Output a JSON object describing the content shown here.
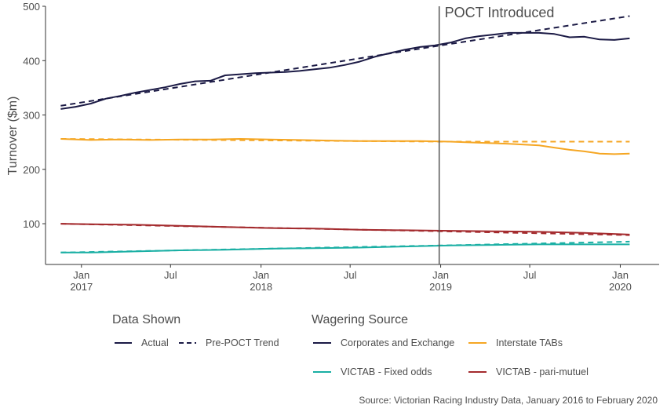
{
  "chart_data": {
    "type": "line",
    "ylabel": "Turnover ($m)",
    "xlabel": "",
    "ylim": [
      25,
      500
    ],
    "yticks": [
      100,
      200,
      300,
      400,
      500
    ],
    "xlim": [
      "2016-10-20",
      "2020-03-20"
    ],
    "xticks": [
      {
        "date": "2017-01-01",
        "label": [
          "Jan",
          "2017"
        ]
      },
      {
        "date": "2017-07-01",
        "label": [
          "Jul",
          ""
        ]
      },
      {
        "date": "2018-01-01",
        "label": [
          "Jan",
          "2018"
        ]
      },
      {
        "date": "2018-07-01",
        "label": [
          "Jul",
          ""
        ]
      },
      {
        "date": "2019-01-01",
        "label": [
          "Jan",
          "2019"
        ]
      },
      {
        "date": "2019-07-01",
        "label": [
          "Jul",
          ""
        ]
      },
      {
        "date": "2020-01-01",
        "label": [
          "Jan",
          "2020"
        ]
      }
    ],
    "grid": false,
    "annotation": {
      "date": "2018-12-29",
      "text": "POCT Introduced"
    },
    "series": [
      {
        "name": "Corporates and Exchange",
        "style": "Actual",
        "color": "#1b1a45",
        "points": [
          [
            "2016-11-20",
            311
          ],
          [
            "2016-12-20",
            315
          ],
          [
            "2017-01-20",
            321
          ],
          [
            "2017-02-20",
            330
          ],
          [
            "2017-03-20",
            335
          ],
          [
            "2017-04-20",
            341
          ],
          [
            "2017-05-20",
            346
          ],
          [
            "2017-06-20",
            351
          ],
          [
            "2017-07-20",
            357
          ],
          [
            "2017-08-20",
            362
          ],
          [
            "2017-09-20",
            363
          ],
          [
            "2017-10-20",
            373
          ],
          [
            "2017-11-20",
            375
          ],
          [
            "2017-12-20",
            377
          ],
          [
            "2018-01-20",
            378
          ],
          [
            "2018-02-20",
            379
          ],
          [
            "2018-03-20",
            381
          ],
          [
            "2018-04-20",
            384
          ],
          [
            "2018-05-20",
            387
          ],
          [
            "2018-06-20",
            392
          ],
          [
            "2018-07-20",
            398
          ],
          [
            "2018-08-20",
            407
          ],
          [
            "2018-09-20",
            414
          ],
          [
            "2018-10-20",
            420
          ],
          [
            "2018-11-20",
            425
          ],
          [
            "2018-12-20",
            428
          ],
          [
            "2019-01-20",
            433
          ],
          [
            "2019-02-20",
            441
          ],
          [
            "2019-03-20",
            445
          ],
          [
            "2019-04-20",
            448
          ],
          [
            "2019-05-20",
            451
          ],
          [
            "2019-06-20",
            451
          ],
          [
            "2019-07-20",
            451
          ],
          [
            "2019-08-20",
            449
          ],
          [
            "2019-09-20",
            443
          ],
          [
            "2019-10-20",
            444
          ],
          [
            "2019-11-20",
            439
          ],
          [
            "2019-12-20",
            438
          ],
          [
            "2020-01-20",
            441
          ]
        ]
      },
      {
        "name": "Corporates and Exchange",
        "style": "Pre-POCT Trend",
        "color": "#1b1a45",
        "points": [
          [
            "2016-11-20",
            317
          ],
          [
            "2019-01-01",
            428
          ],
          [
            "2020-01-20",
            482
          ]
        ]
      },
      {
        "name": "Interstate TABs",
        "style": "Actual",
        "color": "#f5a623",
        "points": [
          [
            "2016-11-20",
            256
          ],
          [
            "2017-01-20",
            254
          ],
          [
            "2017-03-20",
            255
          ],
          [
            "2017-05-20",
            254
          ],
          [
            "2017-07-20",
            255
          ],
          [
            "2017-09-20",
            255
          ],
          [
            "2017-11-20",
            256
          ],
          [
            "2018-01-20",
            255
          ],
          [
            "2018-03-20",
            254
          ],
          [
            "2018-05-20",
            253
          ],
          [
            "2018-07-20",
            252
          ],
          [
            "2018-09-20",
            252
          ],
          [
            "2018-11-20",
            252
          ],
          [
            "2019-01-20",
            251
          ],
          [
            "2019-03-20",
            249
          ],
          [
            "2019-05-20",
            247
          ],
          [
            "2019-07-20",
            244
          ],
          [
            "2019-08-20",
            240
          ],
          [
            "2019-09-20",
            236
          ],
          [
            "2019-10-20",
            233
          ],
          [
            "2019-11-20",
            229
          ],
          [
            "2019-12-20",
            228
          ],
          [
            "2020-01-20",
            229
          ]
        ]
      },
      {
        "name": "Interstate TABs",
        "style": "Pre-POCT Trend",
        "color": "#f5a623",
        "points": [
          [
            "2016-11-20",
            256
          ],
          [
            "2019-01-01",
            251
          ],
          [
            "2020-01-20",
            251
          ]
        ]
      },
      {
        "name": "VICTAB - Fixed odds",
        "style": "Actual",
        "color": "#1aafa4",
        "points": [
          [
            "2016-11-20",
            47
          ],
          [
            "2017-01-20",
            47
          ],
          [
            "2017-04-20",
            49
          ],
          [
            "2017-07-20",
            51
          ],
          [
            "2017-10-20",
            52
          ],
          [
            "2018-01-20",
            54
          ],
          [
            "2018-04-20",
            55
          ],
          [
            "2018-07-20",
            56
          ],
          [
            "2018-10-20",
            58
          ],
          [
            "2019-01-20",
            60
          ],
          [
            "2019-04-20",
            61
          ],
          [
            "2019-07-20",
            62
          ],
          [
            "2019-10-20",
            62
          ],
          [
            "2020-01-20",
            62
          ]
        ]
      },
      {
        "name": "VICTAB - Fixed odds",
        "style": "Pre-POCT Trend",
        "color": "#1aafa4",
        "points": [
          [
            "2016-11-20",
            47
          ],
          [
            "2019-01-01",
            60
          ],
          [
            "2020-01-20",
            67
          ]
        ]
      },
      {
        "name": "VICTAB - pari-mutuel",
        "style": "Actual",
        "color": "#a42b2e",
        "points": [
          [
            "2016-11-20",
            100
          ],
          [
            "2017-01-20",
            99
          ],
          [
            "2017-04-20",
            98
          ],
          [
            "2017-07-20",
            96
          ],
          [
            "2017-10-20",
            94
          ],
          [
            "2018-01-20",
            92
          ],
          [
            "2018-04-20",
            91
          ],
          [
            "2018-07-20",
            89
          ],
          [
            "2018-10-20",
            88
          ],
          [
            "2019-01-20",
            87
          ],
          [
            "2019-04-20",
            86
          ],
          [
            "2019-07-20",
            85
          ],
          [
            "2019-10-20",
            83
          ],
          [
            "2020-01-20",
            80
          ]
        ]
      },
      {
        "name": "VICTAB - pari-mutuel",
        "style": "Pre-POCT Trend",
        "color": "#a42b2e",
        "points": [
          [
            "2016-11-20",
            100
          ],
          [
            "2019-01-01",
            86
          ],
          [
            "2020-01-20",
            79
          ]
        ]
      }
    ]
  },
  "legend": {
    "data_shown": {
      "title": "Data Shown",
      "items": [
        {
          "label": "Actual",
          "dash": "solid"
        },
        {
          "label": "Pre-POCT Trend",
          "dash": "dashed"
        }
      ]
    },
    "wagering_source": {
      "title": "Wagering Source",
      "items": [
        {
          "label": "Corporates and Exchange",
          "color": "#1b1a45"
        },
        {
          "label": "Interstate TABs",
          "color": "#f5a623"
        },
        {
          "label": "VICTAB - Fixed odds",
          "color": "#1aafa4"
        },
        {
          "label": "VICTAB - pari-mutuel",
          "color": "#a42b2e"
        }
      ]
    }
  },
  "source_note": "Source: Victorian Racing Industry Data, January 2016 to February 2020"
}
